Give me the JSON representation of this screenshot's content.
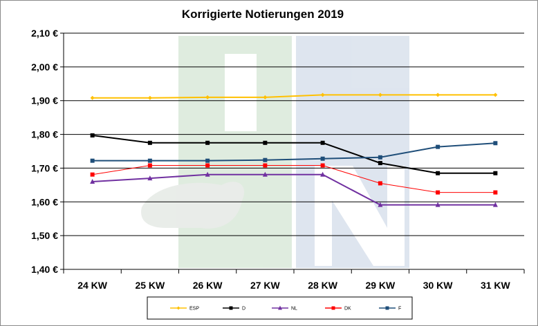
{
  "chart_data": {
    "type": "line",
    "title": "Korrigierte Notierungen 2019",
    "xlabel": "",
    "ylabel": "",
    "categories": [
      "24 KW",
      "25 KW",
      "26 KW",
      "27 KW",
      "28 KW",
      "29 KW",
      "30 KW",
      "31 KW"
    ],
    "ylim": [
      1.4,
      2.1
    ],
    "y_ticks": [
      "1,40 €",
      "1,50 €",
      "1,60 €",
      "1,70 €",
      "1,80 €",
      "1,90 €",
      "2,00 €",
      "2,10 €"
    ],
    "grid": true,
    "legend_position": "bottom",
    "series": [
      {
        "name": "ESP",
        "color": "#FFC000",
        "marker": "diamond",
        "values": [
          1.908,
          1.908,
          1.91,
          1.91,
          1.917,
          1.917,
          1.917,
          1.917
        ]
      },
      {
        "name": "D",
        "color": "#000000",
        "marker": "square",
        "values": [
          1.797,
          1.775,
          1.775,
          1.775,
          1.775,
          1.715,
          1.685,
          1.685
        ]
      },
      {
        "name": "NL",
        "color": "#7030A0",
        "marker": "triangle",
        "values": [
          1.66,
          1.67,
          1.681,
          1.681,
          1.681,
          1.591,
          1.591,
          1.591
        ]
      },
      {
        "name": "DK",
        "color": "#FF0000",
        "marker": "square",
        "values": [
          1.681,
          1.708,
          1.708,
          1.708,
          1.708,
          1.655,
          1.628,
          1.628
        ]
      },
      {
        "name": "F",
        "color": "#1F4E79",
        "marker": "square",
        "values": [
          1.722,
          1.722,
          1.722,
          1.724,
          1.728,
          1.732,
          1.763,
          1.774
        ]
      }
    ]
  }
}
